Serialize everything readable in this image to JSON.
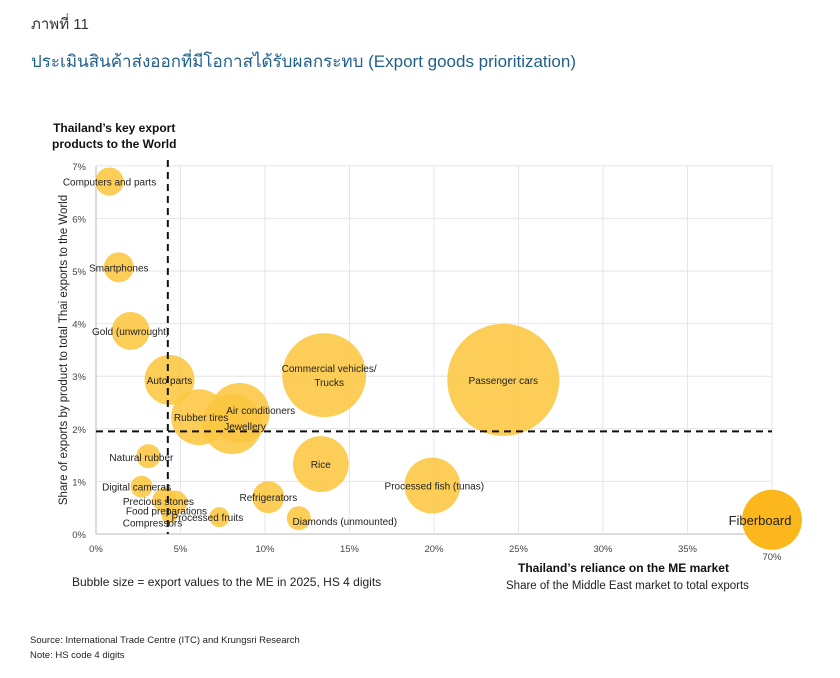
{
  "figure_number": "ภาพที่ 11",
  "figure_title": "ประเมินสินค้าส่งออกที่มีโอกาสได้รับผลกระทบ (Export goods prioritization)",
  "bubble_note": "Bubble size = export values to the ME in 2025, HS 4 digits",
  "source": "Source: International Trade Centre (ITC) and Krungsri Research",
  "note": "Note: HS code 4 digits",
  "chart_data": {
    "type": "scatter",
    "subtype": "bubble",
    "title_y_top": [
      "Thailand’s key export",
      "products to the World"
    ],
    "xlabel": "Thailand’s reliance on the ME market",
    "xlabel_sub": "Share of the Middle East market to total exports",
    "ylabel": "Share of exports by product to total Thai exports to the World",
    "x_ticks": [
      "0%",
      "5%",
      "10%",
      "15%",
      "20%",
      "25%",
      "30%",
      "35%",
      "70%"
    ],
    "x_tick_values": [
      0,
      5,
      10,
      15,
      20,
      25,
      30,
      35,
      70
    ],
    "x_axis_break": {
      "after": 35,
      "jump_to": 70
    },
    "y_ticks": [
      "0%",
      "1%",
      "2%",
      "3%",
      "4%",
      "5%",
      "6%",
      "7%"
    ],
    "y_tick_values": [
      0,
      1,
      2,
      3,
      4,
      5,
      6,
      7
    ],
    "xlim": [
      0,
      70
    ],
    "ylim": [
      0,
      7
    ],
    "grid": true,
    "reference_lines": {
      "x": 4.25,
      "y": 1.95
    },
    "bubble_color": "#FCC741",
    "highlight_color": "#FBB71B",
    "points": [
      {
        "label": "Computers and parts",
        "x": 0.8,
        "y": 6.7,
        "size": 2.0
      },
      {
        "label": "Smartphones",
        "x": 1.35,
        "y": 5.07,
        "size": 2.25
      },
      {
        "label": "Gold (unwrought)",
        "x": 2.05,
        "y": 3.86,
        "size": 3.6
      },
      {
        "label": "Auto parts",
        "x": 4.35,
        "y": 2.93,
        "size": 6.25
      },
      {
        "label": "Rubber tires",
        "x": 6.1,
        "y": 2.22,
        "size": 7.8
      },
      {
        "label": "Jewellery",
        "x": 8.05,
        "y": 2.09,
        "size": 9.0
      },
      {
        "label": "Air conditioners",
        "x": 8.5,
        "y": 2.3,
        "size": 9.0
      },
      {
        "label": "Commercial vehicles/ Trucks",
        "x": 13.5,
        "y": 3.02,
        "size": 17.6
      },
      {
        "label": "Passenger cars",
        "x": 24.1,
        "y": 2.93,
        "size": 31.4
      },
      {
        "label": "Rice",
        "x": 13.3,
        "y": 1.33,
        "size": 7.8
      },
      {
        "label": "Processed fish (tunas)",
        "x": 19.9,
        "y": 0.92,
        "size": 7.8
      },
      {
        "label": "Refrigerators",
        "x": 10.2,
        "y": 0.7,
        "size": 2.56
      },
      {
        "label": "Diamonds (unmounted)",
        "x": 12.0,
        "y": 0.3,
        "size": 1.44
      },
      {
        "label": "Processed fruits",
        "x": 7.3,
        "y": 0.32,
        "size": 1.0
      },
      {
        "label": "Natural rubber",
        "x": 3.1,
        "y": 1.48,
        "size": 1.44
      },
      {
        "label": "Digital cameras",
        "x": 2.7,
        "y": 0.9,
        "size": 1.2
      },
      {
        "label": "Precious stones",
        "x": 4.05,
        "y": 0.65,
        "size": 1.44
      },
      {
        "label": "Food preparations",
        "x": 4.7,
        "y": 0.6,
        "size": 1.44
      },
      {
        "label": "Compressors",
        "x": 4.35,
        "y": 0.35,
        "size": 0.64
      },
      {
        "label": "Fiberboard",
        "x": 70,
        "y": 0.27,
        "size": 9.0,
        "highlight": true
      }
    ]
  }
}
